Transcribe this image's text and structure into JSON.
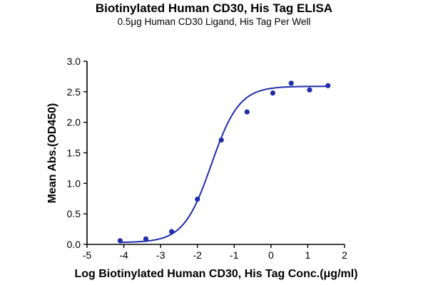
{
  "chart_data": {
    "type": "scatter",
    "title": "Biotinylated Human CD30, His Tag ELISA",
    "subtitle": "0.5μg Human CD30 Ligand, His Tag Per Well",
    "xlabel": "Log Biotinylated Human CD30, His Tag Conc.(μg/ml)",
    "ylabel": "Mean Abs.(OD450)",
    "xlim": [
      -5,
      2
    ],
    "ylim": [
      0,
      3
    ],
    "xticks": [
      "-5",
      "-4",
      "-3",
      "-2",
      "-1",
      "0",
      "1",
      "2"
    ],
    "yticks": [
      "0.0",
      "0.5",
      "1.0",
      "1.5",
      "2.0",
      "2.5",
      "3.0"
    ],
    "grid": false,
    "colors": {
      "series": "#1f2ea8",
      "axis": "#000000"
    },
    "series": [
      {
        "x": [
          -4.1,
          -3.4,
          -2.7,
          -2.0,
          -1.35,
          -0.65,
          0.05,
          0.55,
          1.05,
          1.55
        ],
        "y": [
          0.06,
          0.09,
          0.21,
          0.74,
          1.71,
          2.17,
          2.48,
          2.64,
          2.53,
          2.6
        ]
      }
    ],
    "fit": {
      "type": "4PL",
      "bottom": 0.03,
      "top": 2.59,
      "logEC50": -1.62,
      "hill": 1.15
    }
  }
}
